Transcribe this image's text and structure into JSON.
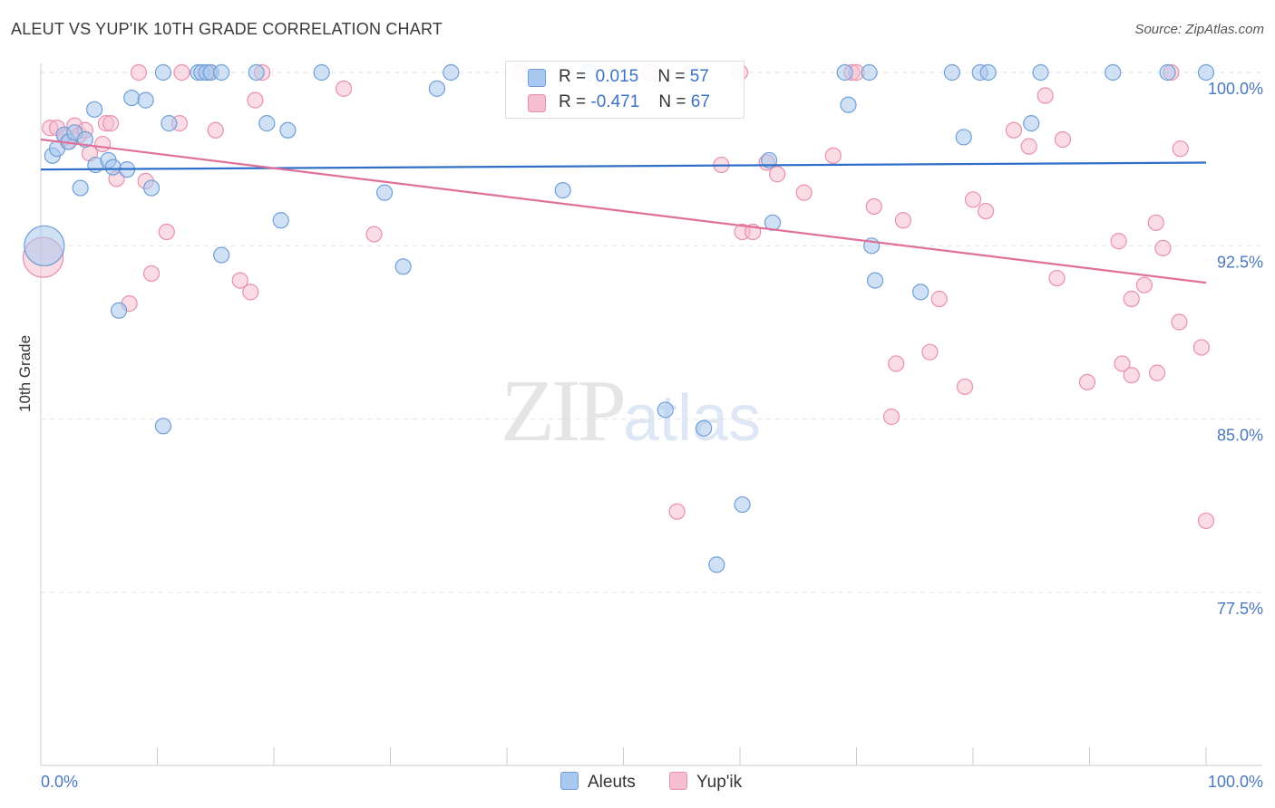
{
  "title": "ALEUT VS YUP'IK 10TH GRADE CORRELATION CHART",
  "source": "Source: ZipAtlas.com",
  "watermark": {
    "zip": "ZIP",
    "atlas": "atlas"
  },
  "legend": {
    "r_label": "R =",
    "n_label": "N =",
    "aleut": {
      "r": "0.015",
      "n": "57",
      "name": "Aleuts"
    },
    "yupik": {
      "r": "-0.471",
      "n": "67",
      "name": "Yup'ik"
    }
  },
  "colors": {
    "aleut_fill": "#a9c8ef",
    "aleut_stroke": "#6f9fd8",
    "aleut_line": "#2f6fc8",
    "yupik_fill": "#f6bfd0",
    "yupik_stroke": "#ea8fae",
    "yupik_line": "#e0709a",
    "tick_label": "#4a78c0"
  },
  "chart_data": {
    "type": "scatter",
    "title": "ALEUT VS YUP'IK 10TH GRADE CORRELATION CHART",
    "xlabel": "",
    "ylabel": "10th Grade",
    "xlim": [
      0,
      100
    ],
    "ylim": [
      70,
      101
    ],
    "x_tick_labels": [
      "0.0%",
      "100.0%"
    ],
    "y_ticks": [
      100,
      92.5,
      85,
      77.5
    ],
    "y_tick_labels": [
      "100.0%",
      "92.5%",
      "85.0%",
      "77.5%"
    ],
    "grid": true,
    "series": [
      {
        "name": "Aleuts",
        "trend": [
          [
            0,
            95.8
          ],
          [
            100,
            96.1
          ]
        ],
        "points": [
          {
            "x": 0.3,
            "y": 92.5,
            "big": true
          },
          {
            "x": 1.0,
            "y": 96.4
          },
          {
            "x": 1.4,
            "y": 96.7
          },
          {
            "x": 2.0,
            "y": 97.3
          },
          {
            "x": 2.4,
            "y": 97.0
          },
          {
            "x": 2.9,
            "y": 97.4
          },
          {
            "x": 3.4,
            "y": 95.0
          },
          {
            "x": 3.8,
            "y": 97.1
          },
          {
            "x": 4.6,
            "y": 98.4
          },
          {
            "x": 4.7,
            "y": 96.0
          },
          {
            "x": 5.8,
            "y": 96.2
          },
          {
            "x": 6.2,
            "y": 95.9
          },
          {
            "x": 7.4,
            "y": 95.8
          },
          {
            "x": 7.8,
            "y": 98.9
          },
          {
            "x": 9.0,
            "y": 98.8
          },
          {
            "x": 9.5,
            "y": 95.0
          },
          {
            "x": 6.7,
            "y": 89.7
          },
          {
            "x": 10.5,
            "y": 84.7
          },
          {
            "x": 10.5,
            "y": 100.0
          },
          {
            "x": 11.0,
            "y": 97.8
          },
          {
            "x": 13.5,
            "y": 100.0
          },
          {
            "x": 13.8,
            "y": 100.0
          },
          {
            "x": 14.2,
            "y": 100.0
          },
          {
            "x": 14.6,
            "y": 100.0
          },
          {
            "x": 15.5,
            "y": 100.0
          },
          {
            "x": 15.5,
            "y": 92.1
          },
          {
            "x": 18.5,
            "y": 100.0
          },
          {
            "x": 19.4,
            "y": 97.8
          },
          {
            "x": 20.6,
            "y": 93.6
          },
          {
            "x": 21.2,
            "y": 97.5
          },
          {
            "x": 24.1,
            "y": 100.0
          },
          {
            "x": 29.5,
            "y": 94.8
          },
          {
            "x": 31.1,
            "y": 91.6
          },
          {
            "x": 34.0,
            "y": 99.3
          },
          {
            "x": 35.2,
            "y": 100.0
          },
          {
            "x": 44.8,
            "y": 94.9
          },
          {
            "x": 47.0,
            "y": 100.0
          },
          {
            "x": 53.6,
            "y": 85.4
          },
          {
            "x": 55.8,
            "y": 100.0
          },
          {
            "x": 56.9,
            "y": 84.6
          },
          {
            "x": 58.0,
            "y": 78.7
          },
          {
            "x": 60.2,
            "y": 81.3
          },
          {
            "x": 62.5,
            "y": 96.2
          },
          {
            "x": 62.8,
            "y": 93.5
          },
          {
            "x": 69.0,
            "y": 100.0
          },
          {
            "x": 69.3,
            "y": 98.6
          },
          {
            "x": 71.1,
            "y": 100.0
          },
          {
            "x": 71.3,
            "y": 92.5
          },
          {
            "x": 71.6,
            "y": 91.0
          },
          {
            "x": 75.5,
            "y": 90.5
          },
          {
            "x": 78.2,
            "y": 100.0
          },
          {
            "x": 79.2,
            "y": 97.2
          },
          {
            "x": 80.6,
            "y": 100.0
          },
          {
            "x": 81.3,
            "y": 100.0
          },
          {
            "x": 85.0,
            "y": 97.8
          },
          {
            "x": 85.8,
            "y": 100.0
          },
          {
            "x": 92.0,
            "y": 100.0
          },
          {
            "x": 96.7,
            "y": 100.0
          },
          {
            "x": 100.0,
            "y": 100.0
          }
        ]
      },
      {
        "name": "Yup'ik",
        "trend": [
          [
            0,
            97.1
          ],
          [
            100,
            90.9
          ]
        ],
        "points": [
          {
            "x": 0.2,
            "y": 92.0,
            "big": true
          },
          {
            "x": 0.8,
            "y": 97.6
          },
          {
            "x": 1.4,
            "y": 97.6
          },
          {
            "x": 2.1,
            "y": 97.2
          },
          {
            "x": 2.3,
            "y": 97.0
          },
          {
            "x": 2.9,
            "y": 97.7
          },
          {
            "x": 3.3,
            "y": 97.3
          },
          {
            "x": 3.8,
            "y": 97.5
          },
          {
            "x": 4.2,
            "y": 96.5
          },
          {
            "x": 5.3,
            "y": 96.9
          },
          {
            "x": 5.6,
            "y": 97.8
          },
          {
            "x": 6.0,
            "y": 97.8
          },
          {
            "x": 6.5,
            "y": 95.4
          },
          {
            "x": 7.6,
            "y": 90.0
          },
          {
            "x": 8.4,
            "y": 100.0
          },
          {
            "x": 9.0,
            "y": 95.3
          },
          {
            "x": 9.5,
            "y": 91.3
          },
          {
            "x": 10.8,
            "y": 93.1
          },
          {
            "x": 11.9,
            "y": 97.8
          },
          {
            "x": 12.1,
            "y": 100.0
          },
          {
            "x": 14.4,
            "y": 100.0
          },
          {
            "x": 15.0,
            "y": 97.5
          },
          {
            "x": 17.1,
            "y": 91.0
          },
          {
            "x": 18.0,
            "y": 90.5
          },
          {
            "x": 18.4,
            "y": 98.8
          },
          {
            "x": 19.0,
            "y": 100.0
          },
          {
            "x": 26.0,
            "y": 99.3
          },
          {
            "x": 28.6,
            "y": 93.0
          },
          {
            "x": 41.2,
            "y": 100.0
          },
          {
            "x": 52.3,
            "y": 100.0
          },
          {
            "x": 54.6,
            "y": 81.0
          },
          {
            "x": 58.4,
            "y": 96.0
          },
          {
            "x": 60.0,
            "y": 100.0
          },
          {
            "x": 60.2,
            "y": 93.1
          },
          {
            "x": 61.1,
            "y": 93.1
          },
          {
            "x": 62.3,
            "y": 96.1
          },
          {
            "x": 63.2,
            "y": 95.6
          },
          {
            "x": 65.5,
            "y": 94.8
          },
          {
            "x": 68.0,
            "y": 96.4
          },
          {
            "x": 69.6,
            "y": 100.0
          },
          {
            "x": 70.0,
            "y": 100.0
          },
          {
            "x": 71.5,
            "y": 94.2
          },
          {
            "x": 73.0,
            "y": 85.1
          },
          {
            "x": 73.4,
            "y": 87.4
          },
          {
            "x": 74.0,
            "y": 93.6
          },
          {
            "x": 76.3,
            "y": 87.9
          },
          {
            "x": 77.1,
            "y": 90.2
          },
          {
            "x": 79.3,
            "y": 86.4
          },
          {
            "x": 80.0,
            "y": 94.5
          },
          {
            "x": 81.1,
            "y": 94.0
          },
          {
            "x": 83.5,
            "y": 97.5
          },
          {
            "x": 84.8,
            "y": 96.8
          },
          {
            "x": 86.2,
            "y": 99.0
          },
          {
            "x": 87.2,
            "y": 91.1
          },
          {
            "x": 87.7,
            "y": 97.1
          },
          {
            "x": 89.8,
            "y": 86.6
          },
          {
            "x": 92.5,
            "y": 92.7
          },
          {
            "x": 92.8,
            "y": 87.4
          },
          {
            "x": 93.6,
            "y": 90.2
          },
          {
            "x": 93.6,
            "y": 86.9
          },
          {
            "x": 94.7,
            "y": 90.8
          },
          {
            "x": 95.7,
            "y": 93.5
          },
          {
            "x": 95.8,
            "y": 87.0
          },
          {
            "x": 96.3,
            "y": 92.4
          },
          {
            "x": 97.0,
            "y": 100.0
          },
          {
            "x": 97.7,
            "y": 89.2
          },
          {
            "x": 97.8,
            "y": 96.7
          },
          {
            "x": 99.6,
            "y": 88.1
          },
          {
            "x": 100.0,
            "y": 80.6
          }
        ]
      }
    ]
  }
}
